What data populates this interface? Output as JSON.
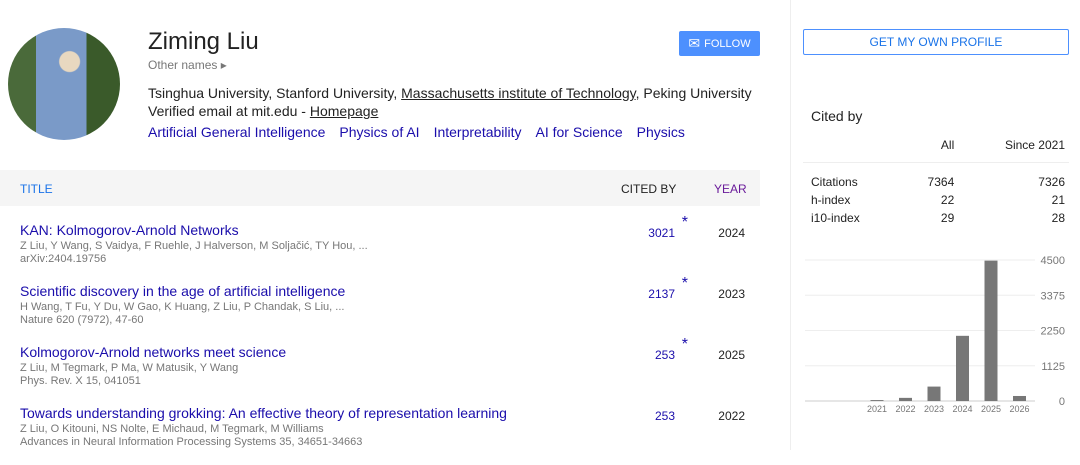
{
  "profile": {
    "name": "Ziming Liu",
    "other_names": "Other names ▸",
    "aff_pre": "Tsinghua University, Stanford University, ",
    "aff_link": "Massachusetts institute of Technology",
    "aff_post": ", Peking University",
    "email": "Verified email at mit.edu - ",
    "homepage": "Homepage",
    "interests": [
      "Artificial General Intelligence",
      "Physics of AI",
      "Interpretability",
      "AI for Science",
      "Physics"
    ],
    "follow": "FOLLOW"
  },
  "table": {
    "headers": {
      "title": "TITLE",
      "cited_by": "CITED BY",
      "year": "YEAR"
    },
    "rows": [
      {
        "title": "KAN: Kolmogorov-Arnold Networks",
        "authors": "Z Liu, Y Wang, S Vaidya, F Ruehle, J Halverson, M Soljačić, TY Hou, ...",
        "venue": "arXiv:2404.19756",
        "cited": "3021",
        "star": "*",
        "year": "2024"
      },
      {
        "title": "Scientific discovery in the age of artificial intelligence",
        "authors": "H Wang, T Fu, Y Du, W Gao, K Huang, Z Liu, P Chandak, S Liu, ...",
        "venue": "Nature 620 (7972), 47-60",
        "cited": "2137",
        "star": "*",
        "year": "2023"
      },
      {
        "title": "Kolmogorov-Arnold networks meet science",
        "authors": "Z Liu, M Tegmark, P Ma, W Matusik, Y Wang",
        "venue": "Phys. Rev. X 15, 041051",
        "cited": "253",
        "star": "*",
        "year": "2025"
      },
      {
        "title": "Towards understanding grokking: An effective theory of representation learning",
        "authors": "Z Liu, O Kitouni, NS Nolte, E Michaud, M Tegmark, M Williams",
        "venue": "Advances in Neural Information Processing Systems 35, 34651-34663",
        "cited": "253",
        "star": "",
        "year": "2022"
      }
    ]
  },
  "sidebar": {
    "get_profile": "GET MY OWN PROFILE",
    "cited_by": "Cited by",
    "cols": [
      "All",
      "Since 2021"
    ],
    "stats": [
      {
        "label": "Citations",
        "all": "7364",
        "since": "7326"
      },
      {
        "label": "h-index",
        "all": "22",
        "since": "21"
      },
      {
        "label": "i10-index",
        "all": "29",
        "since": "28"
      }
    ]
  },
  "chart_data": {
    "type": "bar",
    "categories": [
      "2021",
      "2022",
      "2023",
      "2024",
      "2025",
      "2026"
    ],
    "values": [
      30,
      100,
      460,
      2080,
      4480,
      160
    ],
    "yticks": [
      0,
      1125,
      2250,
      3375,
      4500
    ],
    "ylim": [
      0,
      4500
    ],
    "grid": true,
    "bar_color": "#777777"
  }
}
